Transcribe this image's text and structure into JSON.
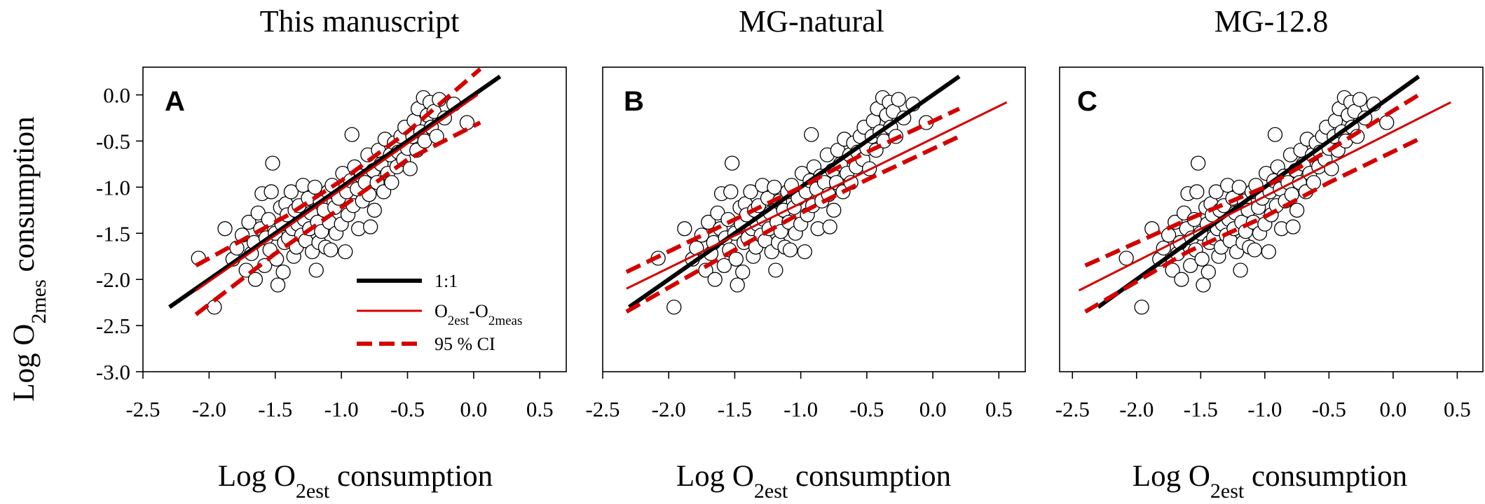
{
  "chart_data": [
    {
      "type": "scatter",
      "title": "This manuscript",
      "panel_label": "A",
      "xlabel": {
        "main": "Log O",
        "sub": "2est",
        "tail": " consumption"
      },
      "ylabel": {
        "main": "Log O",
        "sub": "2mes",
        "tail": " consumption"
      },
      "xlim": [
        -2.5,
        0.7
      ],
      "ylim": [
        -3.0,
        0.3
      ],
      "xticks": [
        "-2.5",
        "-2.0",
        "-1.5",
        "-1.0",
        "-0.5",
        "0.0",
        "0.5"
      ],
      "yticks": [
        "-3.0",
        "-2.5",
        "-2.0",
        "-1.5",
        "-1.0",
        "-0.5",
        "0.0"
      ],
      "lines": [
        {
          "name": "1:1",
          "style": "black-thick",
          "x": [
            -2.3,
            0.2
          ],
          "y": [
            -2.3,
            0.2
          ]
        },
        {
          "name": "fit",
          "style": "red-solid",
          "x": [
            -2.1,
            0.03
          ],
          "y": [
            -2.12,
            0.0
          ]
        },
        {
          "name": "ci-upper",
          "style": "red-dashed",
          "x": [
            -2.1,
            -1.4,
            -1.0,
            -0.5,
            0.05
          ],
          "y": [
            -1.85,
            -1.3,
            -0.93,
            -0.4,
            0.28
          ]
        },
        {
          "name": "ci-lower",
          "style": "red-dashed",
          "x": [
            -2.1,
            -1.5,
            -1.0,
            -0.5,
            0.05
          ],
          "y": [
            -2.38,
            -1.72,
            -1.22,
            -0.7,
            -0.3
          ]
        }
      ],
      "legend": [
        {
          "label": "1:1",
          "style": "black-thick"
        },
        {
          "label_main": "O",
          "label_sub1": "2est",
          "label_mid": "-O",
          "label_sub2": "2meas",
          "style": "red-solid"
        },
        {
          "label": "95 % CI",
          "style": "red-dashed"
        }
      ]
    },
    {
      "type": "scatter",
      "title": "MG-natural",
      "panel_label": "B",
      "xlabel": {
        "main": "Log O",
        "sub": "2est",
        "tail": " consumption"
      },
      "xlim": [
        -2.5,
        0.7
      ],
      "ylim": [
        -3.0,
        0.3
      ],
      "xticks": [
        "-2.5",
        "-2.0",
        "-1.5",
        "-1.0",
        "-0.5",
        "0.0",
        "0.5"
      ],
      "lines": [
        {
          "name": "1:1",
          "style": "black-thick",
          "x": [
            -2.3,
            0.2
          ],
          "y": [
            -2.3,
            0.2
          ]
        },
        {
          "name": "fit",
          "style": "red-solid",
          "x": [
            -2.32,
            0.56
          ],
          "y": [
            -2.1,
            -0.08
          ]
        },
        {
          "name": "ci-upper",
          "style": "red-dashed",
          "x": [
            -2.32,
            -1.5,
            -1.0,
            -0.5,
            0.2
          ],
          "y": [
            -1.92,
            -1.35,
            -1.0,
            -0.62,
            -0.15
          ]
        },
        {
          "name": "ci-lower",
          "style": "red-dashed",
          "x": [
            -2.32,
            -1.5,
            -1.0,
            -0.5,
            0.2
          ],
          "y": [
            -2.35,
            -1.68,
            -1.28,
            -0.92,
            -0.45
          ]
        }
      ]
    },
    {
      "type": "scatter",
      "title": "MG-12.8",
      "panel_label": "C",
      "xlabel": {
        "main": "Log O",
        "sub": "2est",
        "tail": " consumption"
      },
      "xlim": [
        -2.6,
        0.7
      ],
      "ylim": [
        -3.0,
        0.3
      ],
      "xticks": [
        "-2.5",
        "-2.0",
        "-1.5",
        "-1.0",
        "-0.5",
        "0.0",
        "0.5"
      ],
      "lines": [
        {
          "name": "1:1",
          "style": "black-thick",
          "x": [
            -2.3,
            0.2
          ],
          "y": [
            -2.3,
            0.2
          ]
        },
        {
          "name": "fit",
          "style": "red-solid",
          "x": [
            -2.45,
            0.45
          ],
          "y": [
            -2.12,
            -0.08
          ]
        },
        {
          "name": "ci-upper",
          "style": "red-dashed",
          "x": [
            -2.4,
            -1.6,
            -1.0,
            -0.5,
            0.2
          ],
          "y": [
            -1.85,
            -1.35,
            -1.0,
            -0.6,
            0.0
          ]
        },
        {
          "name": "ci-lower",
          "style": "red-dashed",
          "x": [
            -2.4,
            -1.6,
            -1.0,
            -0.5,
            0.2
          ],
          "y": [
            -2.35,
            -1.7,
            -1.32,
            -0.95,
            -0.48
          ]
        }
      ]
    }
  ],
  "points_meas": [
    {
      "x": -2.08,
      "y": -1.77
    },
    {
      "x": -1.96,
      "y": -2.3
    },
    {
      "x": -1.88,
      "y": -1.45
    },
    {
      "x": -1.82,
      "y": -1.78
    },
    {
      "x": -1.79,
      "y": -1.66
    },
    {
      "x": -1.75,
      "y": -1.52
    },
    {
      "x": -1.72,
      "y": -1.9
    },
    {
      "x": -1.7,
      "y": -1.38
    },
    {
      "x": -1.68,
      "y": -1.72
    },
    {
      "x": -1.66,
      "y": -1.6
    },
    {
      "x": -1.65,
      "y": -2.0
    },
    {
      "x": -1.63,
      "y": -1.28
    },
    {
      "x": -1.61,
      "y": -1.45
    },
    {
      "x": -1.6,
      "y": -1.07
    },
    {
      "x": -1.58,
      "y": -1.85
    },
    {
      "x": -1.57,
      "y": -1.55
    },
    {
      "x": -1.55,
      "y": -1.35
    },
    {
      "x": -1.54,
      "y": -1.68
    },
    {
      "x": -1.53,
      "y": -1.05
    },
    {
      "x": -1.52,
      "y": -0.74
    },
    {
      "x": -1.5,
      "y": -1.5
    },
    {
      "x": -1.49,
      "y": -1.78
    },
    {
      "x": -1.48,
      "y": -2.06
    },
    {
      "x": -1.46,
      "y": -1.22
    },
    {
      "x": -1.45,
      "y": -1.4
    },
    {
      "x": -1.44,
      "y": -1.92
    },
    {
      "x": -1.43,
      "y": -1.6
    },
    {
      "x": -1.42,
      "y": -1.18
    },
    {
      "x": -1.41,
      "y": -1.3
    },
    {
      "x": -1.4,
      "y": -1.55
    },
    {
      "x": -1.38,
      "y": -1.05
    },
    {
      "x": -1.37,
      "y": -1.45
    },
    {
      "x": -1.36,
      "y": -1.75
    },
    {
      "x": -1.35,
      "y": -1.25
    },
    {
      "x": -1.34,
      "y": -1.65
    },
    {
      "x": -1.33,
      "y": -1.4
    },
    {
      "x": -1.32,
      "y": -1.2
    },
    {
      "x": -1.3,
      "y": -1.52
    },
    {
      "x": -1.29,
      "y": -0.98
    },
    {
      "x": -1.28,
      "y": -1.35
    },
    {
      "x": -1.27,
      "y": -1.58
    },
    {
      "x": -1.25,
      "y": -1.12
    },
    {
      "x": -1.24,
      "y": -1.45
    },
    {
      "x": -1.23,
      "y": -1.28
    },
    {
      "x": -1.22,
      "y": -1.7
    },
    {
      "x": -1.2,
      "y": -1.0
    },
    {
      "x": -1.19,
      "y": -1.9
    },
    {
      "x": -1.18,
      "y": -1.38
    },
    {
      "x": -1.17,
      "y": -1.6
    },
    {
      "x": -1.16,
      "y": -1.15
    },
    {
      "x": -1.15,
      "y": -1.48
    },
    {
      "x": -1.13,
      "y": -1.25
    },
    {
      "x": -1.12,
      "y": -1.65
    },
    {
      "x": -1.1,
      "y": -1.05
    },
    {
      "x": -1.09,
      "y": -1.38
    },
    {
      "x": -1.08,
      "y": -1.68
    },
    {
      "x": -1.07,
      "y": -0.98
    },
    {
      "x": -1.05,
      "y": -1.22
    },
    {
      "x": -1.04,
      "y": -1.5
    },
    {
      "x": -1.02,
      "y": -1.12
    },
    {
      "x": -1.0,
      "y": -1.4
    },
    {
      "x": -0.99,
      "y": -0.85
    },
    {
      "x": -0.97,
      "y": -1.7
    },
    {
      "x": -0.96,
      "y": -1.05
    },
    {
      "x": -0.95,
      "y": -1.3
    },
    {
      "x": -0.93,
      "y": -0.93
    },
    {
      "x": -0.92,
      "y": -0.43
    },
    {
      "x": -0.91,
      "y": -1.2
    },
    {
      "x": -0.9,
      "y": -0.78
    },
    {
      "x": -0.88,
      "y": -1.02
    },
    {
      "x": -0.87,
      "y": -1.45
    },
    {
      "x": -0.85,
      "y": -0.88
    },
    {
      "x": -0.84,
      "y": -1.15
    },
    {
      "x": -0.82,
      "y": -0.95
    },
    {
      "x": -0.8,
      "y": -0.65
    },
    {
      "x": -0.79,
      "y": -1.08
    },
    {
      "x": -0.78,
      "y": -1.43
    },
    {
      "x": -0.76,
      "y": -0.82
    },
    {
      "x": -0.75,
      "y": -1.25
    },
    {
      "x": -0.73,
      "y": -0.95
    },
    {
      "x": -0.72,
      "y": -0.6
    },
    {
      "x": -0.7,
      "y": -0.75
    },
    {
      "x": -0.68,
      "y": -1.05
    },
    {
      "x": -0.67,
      "y": -0.48
    },
    {
      "x": -0.65,
      "y": -0.85
    },
    {
      "x": -0.63,
      "y": -0.65
    },
    {
      "x": -0.62,
      "y": -0.95
    },
    {
      "x": -0.6,
      "y": -0.52
    },
    {
      "x": -0.58,
      "y": -0.78
    },
    {
      "x": -0.57,
      "y": -0.62
    },
    {
      "x": -0.55,
      "y": -0.45
    },
    {
      "x": -0.53,
      "y": -0.7
    },
    {
      "x": -0.52,
      "y": -0.35
    },
    {
      "x": -0.5,
      "y": -0.58
    },
    {
      "x": -0.48,
      "y": -0.8
    },
    {
      "x": -0.46,
      "y": -0.45
    },
    {
      "x": -0.45,
      "y": -0.28
    },
    {
      "x": -0.43,
      "y": -0.6
    },
    {
      "x": -0.42,
      "y": -0.15
    },
    {
      "x": -0.4,
      "y": -0.4
    },
    {
      "x": -0.38,
      "y": -0.03
    },
    {
      "x": -0.37,
      "y": -0.5
    },
    {
      "x": -0.35,
      "y": -0.22
    },
    {
      "x": -0.33,
      "y": -0.08
    },
    {
      "x": -0.32,
      "y": -0.35
    },
    {
      "x": -0.3,
      "y": -0.18
    },
    {
      "x": -0.28,
      "y": -0.45
    },
    {
      "x": -0.26,
      "y": -0.05
    },
    {
      "x": -0.22,
      "y": -0.25
    },
    {
      "x": -0.15,
      "y": -0.1
    },
    {
      "x": -0.05,
      "y": -0.3
    }
  ]
}
